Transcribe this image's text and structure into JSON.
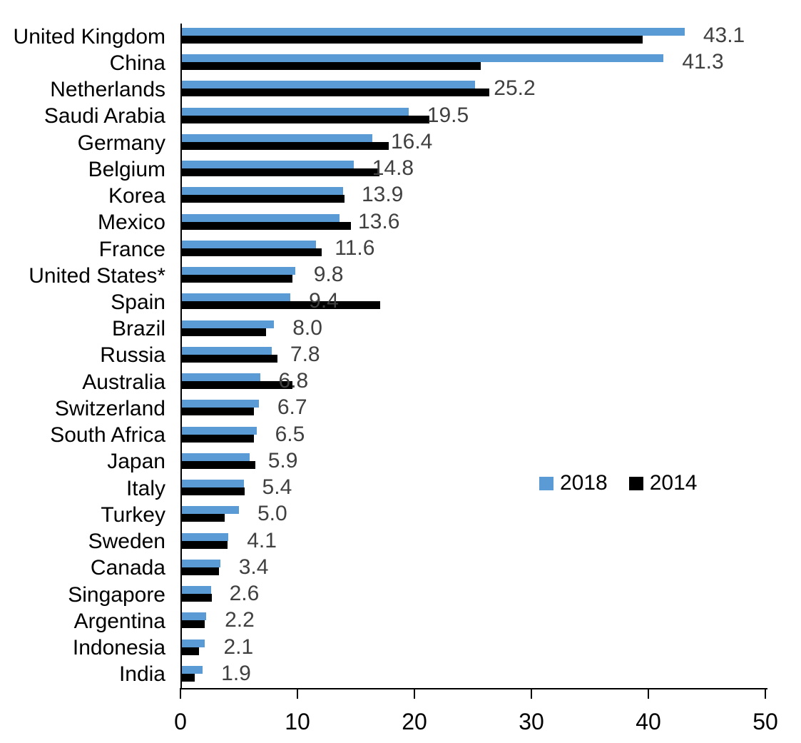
{
  "chart_data": {
    "type": "bar",
    "orientation": "horizontal",
    "title": "",
    "xlabel": "",
    "ylabel": "",
    "xlim": [
      0,
      50
    ],
    "x_ticks": [
      "0",
      "10",
      "20",
      "30",
      "40",
      "50"
    ],
    "grid": false,
    "legend_position": "middle-right",
    "categories": [
      "United Kingdom",
      "China",
      "Netherlands",
      "Saudi Arabia",
      "Germany",
      "Belgium",
      "Korea",
      "Mexico",
      "France",
      "United States*",
      "Spain",
      "Brazil",
      "Russia",
      "Australia",
      "Switzerland",
      "South Africa",
      "Japan",
      "Italy",
      "Turkey",
      "Sweden",
      "Canada",
      "Singapore",
      "Argentina",
      "Indonesia",
      "India"
    ],
    "series": [
      {
        "name": "2018",
        "color": "#5B9BD5",
        "values": [
          43.1,
          41.3,
          25.2,
          19.5,
          16.4,
          14.8,
          13.9,
          13.6,
          11.6,
          9.8,
          9.4,
          8.0,
          7.8,
          6.8,
          6.7,
          6.5,
          5.9,
          5.4,
          5.0,
          4.1,
          3.4,
          2.6,
          2.2,
          2.1,
          1.9
        ]
      },
      {
        "name": "2014",
        "color": "#000000",
        "values": [
          39.5,
          25.7,
          26.4,
          21.3,
          17.8,
          17.0,
          14.0,
          14.6,
          12.1,
          9.6,
          17.1,
          7.3,
          8.3,
          9.6,
          6.3,
          6.3,
          6.4,
          5.5,
          3.8,
          4.0,
          3.3,
          2.7,
          2.1,
          1.6,
          1.2
        ]
      }
    ],
    "value_labels": [
      "43.1",
      "41.3",
      "25.2",
      "19.5",
      "16.4",
      "14.8",
      "13.9",
      "13.6",
      "11.6",
      "9.8",
      "9.4",
      "8.0",
      "7.8",
      "6.8",
      "6.7",
      "6.5",
      "5.9",
      "5.4",
      "5.0",
      "4.1",
      "3.4",
      "2.6",
      "2.2",
      "2.1",
      "1.9"
    ],
    "value_label_color": "#404040",
    "axis_color": "#000000"
  }
}
